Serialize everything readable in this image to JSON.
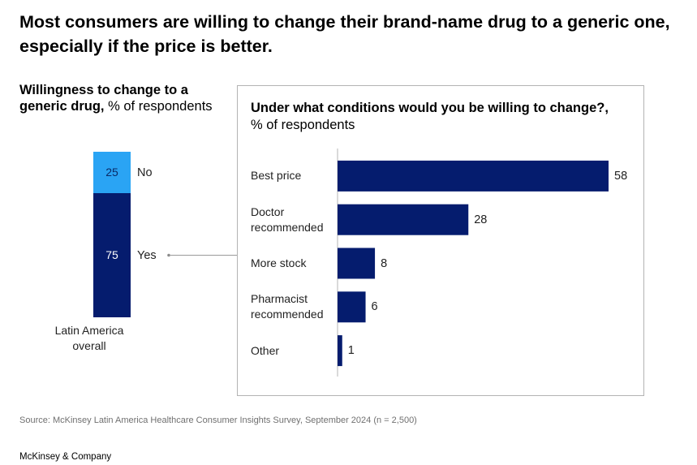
{
  "headline": "Most consumers are willing to change their brand-name drug to a generic one, especially if the price is better.",
  "left_chart": {
    "title_bold": "Willingness to change to a generic drug,",
    "title_rest": "% of respondents",
    "xlabel_line1": "Latin America",
    "xlabel_line2": "overall"
  },
  "right_chart": {
    "title_bold": "Under what conditions would you be willing to change?,",
    "title_rest": "% of respondents"
  },
  "chart_data": [
    {
      "type": "bar",
      "stacked": true,
      "title": "Willingness to change to a generic drug, % of respondents",
      "categories": [
        "Latin America overall"
      ],
      "series": [
        {
          "name": "No",
          "values": [
            25
          ],
          "color": "#2aa4f4"
        },
        {
          "name": "Yes",
          "values": [
            75
          ],
          "color": "#051c6e"
        }
      ],
      "ylim": [
        0,
        100
      ]
    },
    {
      "type": "bar",
      "orientation": "horizontal",
      "title": "Under what conditions would you be willing to change?, % of respondents",
      "categories": [
        "Best price",
        "Doctor recommended",
        "More stock",
        "Pharmacist recommended",
        "Other"
      ],
      "label_lines": [
        [
          "Best price"
        ],
        [
          "Doctor",
          "recommended"
        ],
        [
          "More stock"
        ],
        [
          "Pharmacist",
          "recommended"
        ],
        [
          "Other"
        ]
      ],
      "values": [
        58,
        28,
        8,
        6,
        1
      ],
      "value_labels": [
        "58",
        "28",
        "8",
        "6",
        "1"
      ],
      "color": "#051c6e",
      "xlim": [
        0,
        58
      ]
    }
  ],
  "source": "Source: McKinsey Latin America Healthcare Consumer Insights Survey, September 2024 (n = 2,500)",
  "brand": "McKinsey & Company"
}
